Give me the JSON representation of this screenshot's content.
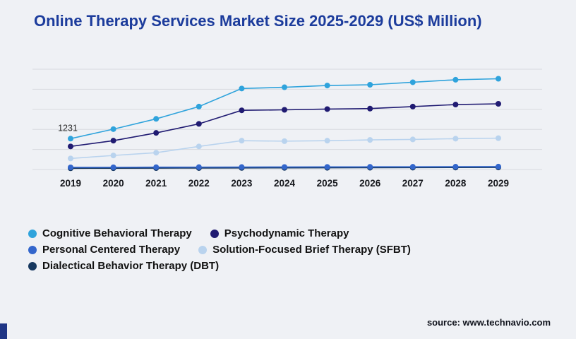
{
  "page": {
    "title": "Online Therapy Services Market Size 2025-2029 (US$ Million)",
    "title_color": "#1c3c9c",
    "source": "source: www.technavio.com",
    "accent": "#1f3585",
    "background": "#eff1f5",
    "gridline_color": "#d7d9de"
  },
  "chart_data": {
    "type": "line",
    "title": "Online Therapy Services Market Size 2025-2029 (US$ Million)",
    "xlabel": "",
    "ylabel": "",
    "x": [
      "2019",
      "2020",
      "2021",
      "2022",
      "2023",
      "2024",
      "2025",
      "2026",
      "2027",
      "2028",
      "2029"
    ],
    "ylim": [
      0,
      4000
    ],
    "grid": true,
    "gridline_step": 800,
    "legend_position": "bottom",
    "annotation": {
      "text": "1231",
      "series_index": 0,
      "x_index": 0
    },
    "series": [
      {
        "name": "Cognitive Behavioral Therapy",
        "color": "#2fa3dc",
        "values": [
          1231,
          1610,
          2020,
          2510,
          3230,
          3280,
          3350,
          3380,
          3480,
          3580,
          3620
        ]
      },
      {
        "name": "Psychodynamic Therapy",
        "color": "#201b72",
        "values": [
          920,
          1150,
          1460,
          1820,
          2360,
          2380,
          2410,
          2430,
          2510,
          2590,
          2620
        ]
      },
      {
        "name": "Personal Centered Therapy",
        "color": "#3366cc",
        "values": [
          85,
          88,
          92,
          95,
          98,
          100,
          103,
          106,
          108,
          112,
          115
        ]
      },
      {
        "name": "Solution-Focused Brief Therapy (SFBT)",
        "color": "#b9d3ee",
        "values": [
          440,
          560,
          670,
          920,
          1150,
          1130,
          1150,
          1180,
          1200,
          1230,
          1250
        ]
      },
      {
        "name": "Dialectical Behavior Therapy (DBT)",
        "color": "#16375f",
        "values": [
          48,
          52,
          55,
          58,
          62,
          65,
          68,
          72,
          75,
          78,
          82
        ]
      }
    ]
  }
}
